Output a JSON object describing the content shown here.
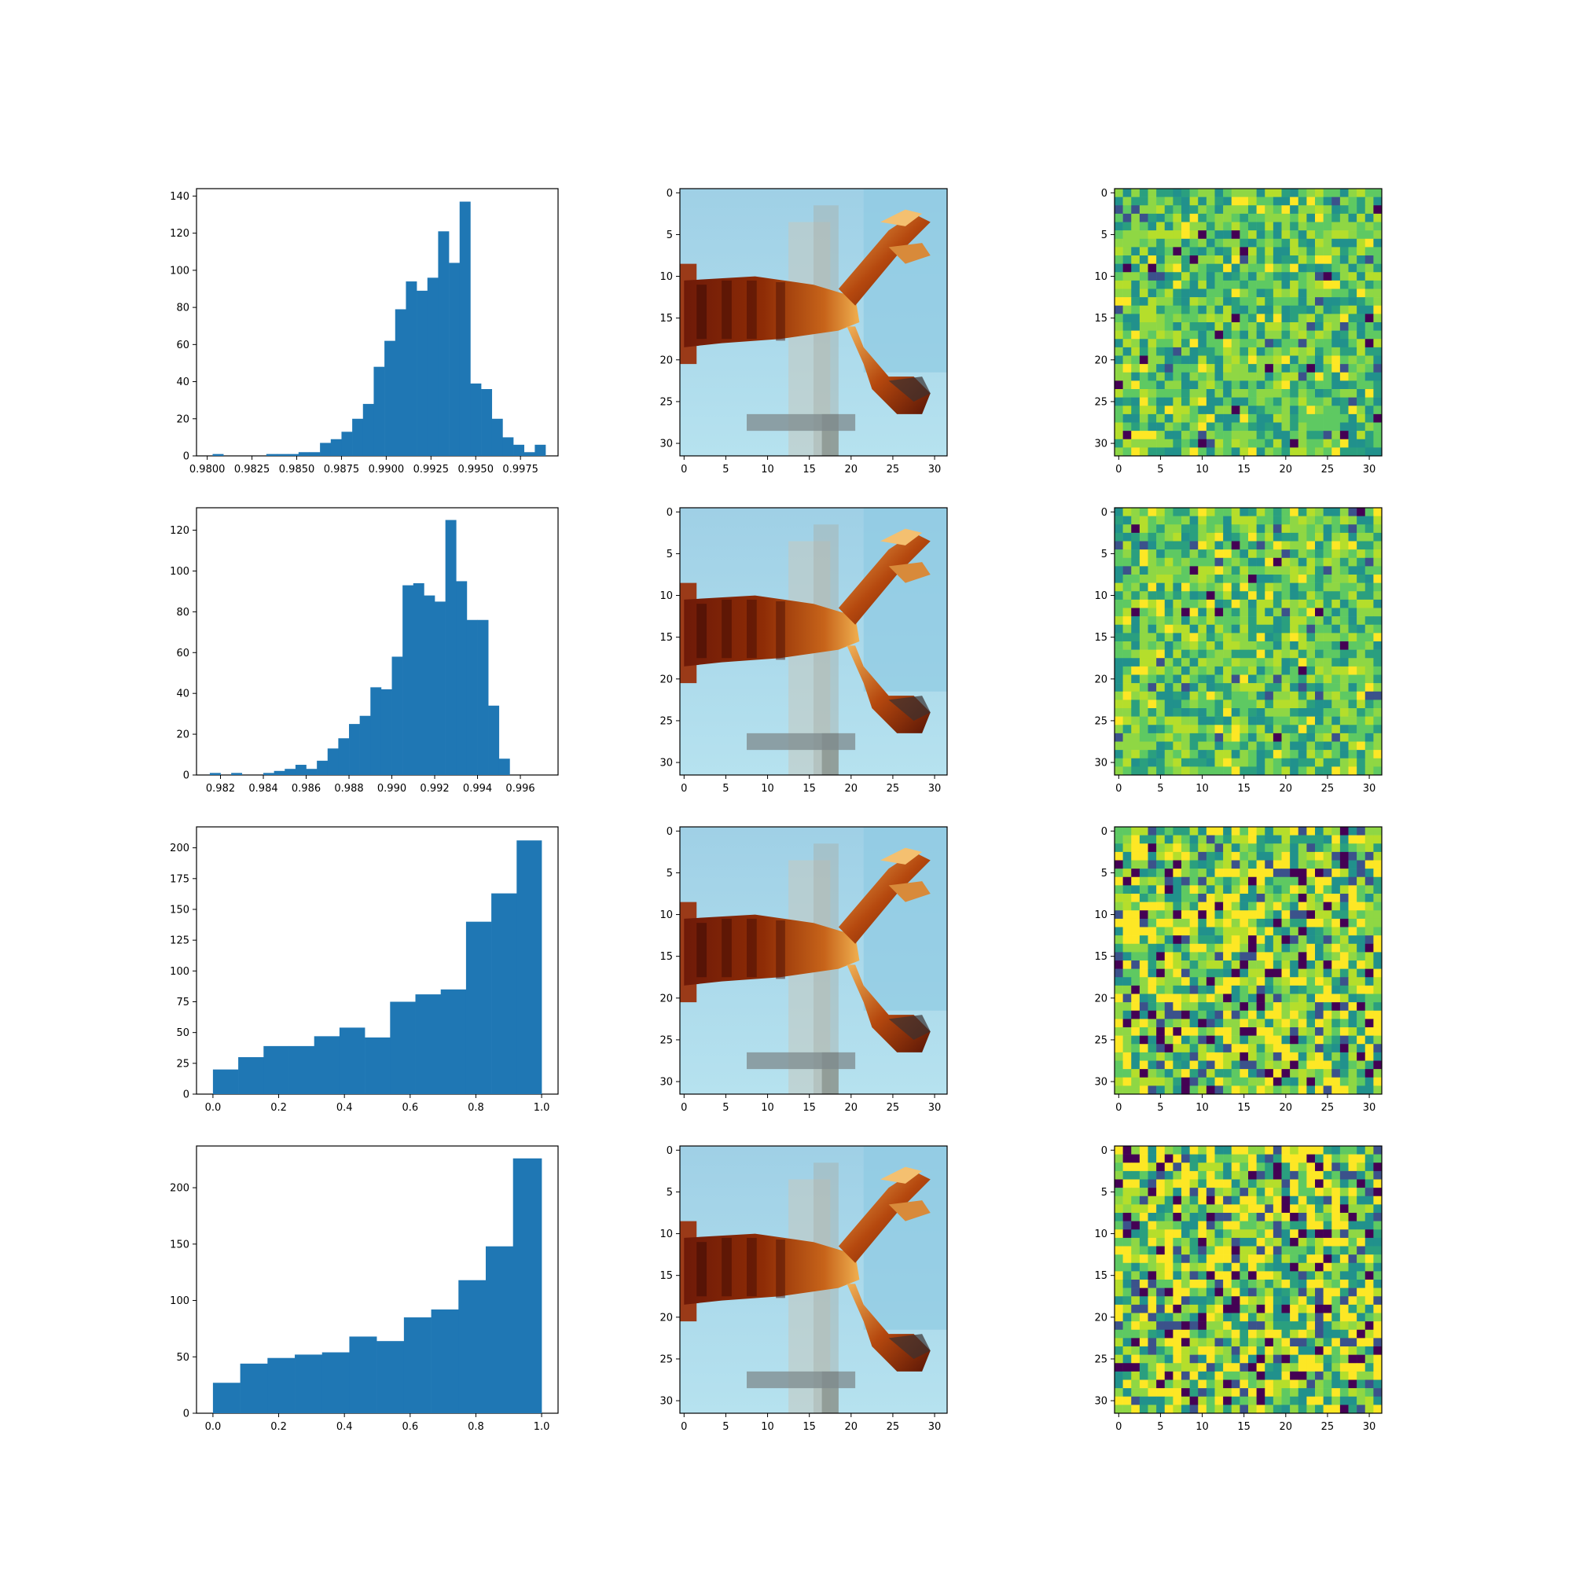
{
  "colors": {
    "bar": "#1f77b4",
    "axes": "#000000",
    "background": "#ffffff"
  },
  "image_panels": {
    "xticks": [
      "0",
      "5",
      "10",
      "15",
      "20",
      "25",
      "30"
    ],
    "yticks": [
      "0",
      "5",
      "10",
      "15",
      "20",
      "25",
      "30"
    ],
    "image_grid": "32x32",
    "image_content": "lobster photograph on light blue background (pixelated)",
    "heatmap_colormap": "viridis"
  },
  "chart_data": [
    {
      "type": "bar",
      "histogram": true,
      "xlim": [
        0.9794,
        0.9996
      ],
      "ylim": [
        0,
        144
      ],
      "xticks": [
        "0.9800",
        "0.9825",
        "0.9850",
        "0.9875",
        "0.9900",
        "0.9925",
        "0.9950",
        "0.9975"
      ],
      "yticks": [
        "0",
        "20",
        "40",
        "60",
        "80",
        "100",
        "120",
        "140"
      ],
      "bin_edges": [
        0.9803,
        0.9809,
        0.9815,
        0.9821,
        0.9827,
        0.9833,
        0.9839,
        0.9845,
        0.9851,
        0.9857,
        0.9863,
        0.9869,
        0.9875,
        0.9881,
        0.9887,
        0.9893,
        0.9899,
        0.9905,
        0.9911,
        0.9917,
        0.9923,
        0.9929,
        0.9935,
        0.9941,
        0.9947,
        0.9953,
        0.9959,
        0.9965,
        0.9971,
        0.9977,
        0.9983,
        0.9989
      ],
      "counts": [
        1,
        0,
        0,
        0,
        0,
        1,
        1,
        1,
        2,
        2,
        7,
        9,
        13,
        20,
        28,
        48,
        62,
        79,
        94,
        89,
        96,
        121,
        104,
        137,
        39,
        36,
        20,
        10,
        6,
        2,
        6
      ]
    },
    {
      "type": "bar",
      "histogram": true,
      "xlim": [
        0.98088,
        0.99776
      ],
      "ylim": [
        0,
        131
      ],
      "xticks": [
        "0.982",
        "0.984",
        "0.986",
        "0.988",
        "0.990",
        "0.992",
        "0.994",
        "0.996"
      ],
      "yticks": [
        "0",
        "20",
        "40",
        "60",
        "80",
        "100",
        "120"
      ],
      "bin_edges": [
        0.9815,
        0.982,
        0.9825,
        0.983,
        0.9835,
        0.984,
        0.9845,
        0.985,
        0.9855,
        0.986,
        0.9865,
        0.987,
        0.9875,
        0.988,
        0.9885,
        0.989,
        0.9895,
        0.99,
        0.9905,
        0.991,
        0.9915,
        0.992,
        0.9925,
        0.993,
        0.9935,
        0.994,
        0.9945,
        0.995,
        0.9955,
        0.996,
        0.9965,
        0.997
      ],
      "counts": [
        1,
        0,
        1,
        0,
        0,
        1,
        2,
        3,
        5,
        3,
        7,
        13,
        18,
        25,
        29,
        43,
        42,
        58,
        93,
        94,
        88,
        85,
        125,
        95,
        76,
        76,
        34,
        8,
        0,
        0,
        0
      ]
    },
    {
      "type": "bar",
      "histogram": true,
      "xlim": [
        -0.05,
        1.05
      ],
      "ylim": [
        0,
        217
      ],
      "xticks": [
        "0.0",
        "0.2",
        "0.4",
        "0.6",
        "0.8",
        "1.0"
      ],
      "yticks": [
        "0",
        "25",
        "50",
        "75",
        "100",
        "125",
        "150",
        "175",
        "200"
      ],
      "bin_edges": [
        0.0,
        0.077,
        0.154,
        0.231,
        0.308,
        0.385,
        0.462,
        0.539,
        0.616,
        0.693,
        0.77,
        0.847,
        0.924,
        1.0
      ],
      "counts": [
        20,
        30,
        39,
        39,
        47,
        54,
        46,
        75,
        81,
        85,
        140,
        163,
        206
      ]
    },
    {
      "type": "bar",
      "histogram": true,
      "xlim": [
        -0.05,
        1.05
      ],
      "ylim": [
        0,
        237
      ],
      "xticks": [
        "0.0",
        "0.2",
        "0.4",
        "0.6",
        "0.8",
        "1.0"
      ],
      "yticks": [
        "0",
        "50",
        "100",
        "150",
        "200"
      ],
      "bin_edges": [
        0.0,
        0.083,
        0.166,
        0.249,
        0.332,
        0.415,
        0.498,
        0.581,
        0.664,
        0.747,
        0.83,
        0.913,
        1.0
      ],
      "counts": [
        27,
        44,
        49,
        52,
        54,
        68,
        64,
        85,
        92,
        118,
        148,
        226
      ]
    }
  ]
}
